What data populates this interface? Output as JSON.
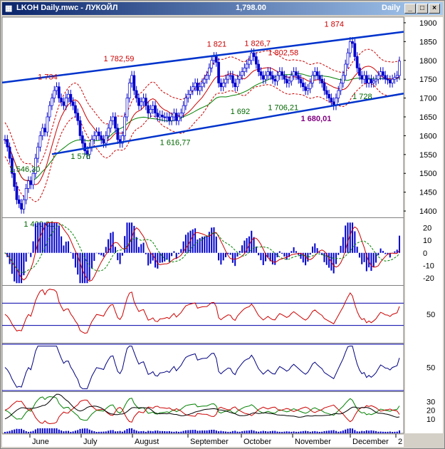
{
  "window": {
    "title": "LKOH Daily.mwc - ЛУКОЙЛ",
    "last_price": "1,798.00",
    "period": "Daily"
  },
  "colors": {
    "price_candles": "#0000cc",
    "channel": "#0033cc",
    "ma_fast": "#cc0000",
    "ma_slow": "#008000",
    "peak_label": "#cc0000",
    "trough_label": "#006600",
    "highlight_label": "#800080"
  },
  "chart_data": [
    {
      "type": "candlestick",
      "panel": "price",
      "x_labels": [
        "June",
        "July",
        "August",
        "September",
        "October",
        "November",
        "December",
        "2"
      ],
      "y_ticks": [
        1400,
        1450,
        1500,
        1550,
        1600,
        1650,
        1700,
        1750,
        1800,
        1850,
        1900
      ],
      "ylim": [
        1385,
        1915
      ],
      "close": [
        1590,
        1570,
        1540,
        1500,
        1465,
        1430,
        1420,
        1405,
        1430,
        1460,
        1480,
        1470,
        1500,
        1540,
        1570,
        1600,
        1620,
        1610,
        1650,
        1680,
        1700,
        1720,
        1730,
        1700,
        1690,
        1680,
        1700,
        1710,
        1690,
        1680,
        1660,
        1640,
        1600,
        1580,
        1560,
        1550,
        1570,
        1590,
        1600,
        1610,
        1600,
        1590,
        1580,
        1600,
        1620,
        1640,
        1650,
        1620,
        1590,
        1580,
        1600,
        1650,
        1700,
        1740,
        1760,
        1720,
        1700,
        1680,
        1690,
        1700,
        1680,
        1660,
        1670,
        1680,
        1660,
        1650,
        1655,
        1650,
        1648,
        1650,
        1640,
        1650,
        1660,
        1640,
        1650,
        1660,
        1680,
        1700,
        1710,
        1720,
        1730,
        1740,
        1720,
        1730,
        1740,
        1750,
        1760,
        1780,
        1800,
        1810,
        1795,
        1740,
        1730,
        1740,
        1750,
        1760,
        1760,
        1740,
        1730,
        1750,
        1760,
        1770,
        1780,
        1790,
        1800,
        1820,
        1810,
        1790,
        1770,
        1760,
        1750,
        1760,
        1770,
        1760,
        1750,
        1745,
        1760,
        1770,
        1760,
        1750,
        1740,
        1745,
        1760,
        1770,
        1760,
        1750,
        1740,
        1730,
        1720,
        1725,
        1740,
        1760,
        1770,
        1760,
        1750,
        1740,
        1720,
        1710,
        1700,
        1690,
        1680,
        1700,
        1720,
        1740,
        1760,
        1790,
        1820,
        1850,
        1845,
        1810,
        1780,
        1760,
        1750,
        1760,
        1740,
        1750,
        1740,
        1745,
        1750,
        1760,
        1770,
        1760,
        1750,
        1748,
        1740,
        1750,
        1755,
        1760,
        1798
      ],
      "annotations": [
        {
          "text": "1 734",
          "kind": "peak",
          "value": 1734
        },
        {
          "text": "1 782,59",
          "kind": "peak",
          "value": 1782.59
        },
        {
          "text": "1 821",
          "kind": "peak",
          "value": 1821
        },
        {
          "text": "1 826,7",
          "kind": "peak",
          "value": 1826.7
        },
        {
          "text": "1 802,58",
          "kind": "peak",
          "value": 1802.58
        },
        {
          "text": "1 874",
          "kind": "peak",
          "value": 1874
        },
        {
          "text": "1 400,01",
          "kind": "trough",
          "value": 1400.01
        },
        {
          "text": "1 546,30",
          "kind": "trough",
          "value": 1546.3
        },
        {
          "text": "1 576",
          "kind": "trough",
          "value": 1576
        },
        {
          "text": "1 616,77",
          "kind": "trough",
          "value": 1616.77
        },
        {
          "text": "1 692",
          "kind": "trough",
          "value": 1692
        },
        {
          "text": "1 706,21",
          "kind": "trough",
          "value": 1706.21
        },
        {
          "text": "1 728",
          "kind": "trough",
          "value": 1728
        },
        {
          "text": "1 680,01",
          "kind": "highlight",
          "value": 1680.01
        }
      ]
    },
    {
      "type": "bar",
      "panel": "macd",
      "y_ticks": [
        20,
        10,
        0,
        -10,
        -20
      ],
      "ylim": [
        -25,
        27
      ]
    },
    {
      "type": "line",
      "panel": "rsi",
      "y_ticks": [
        50
      ],
      "ylim": [
        0,
        100
      ]
    },
    {
      "type": "line",
      "panel": "oscillator",
      "y_ticks": [
        50
      ],
      "ylim": [
        0,
        100
      ]
    },
    {
      "type": "line",
      "panel": "adx",
      "y_ticks": [
        30,
        20,
        10
      ],
      "ylim": [
        0,
        40
      ]
    },
    {
      "type": "bar",
      "panel": "volume"
    }
  ]
}
